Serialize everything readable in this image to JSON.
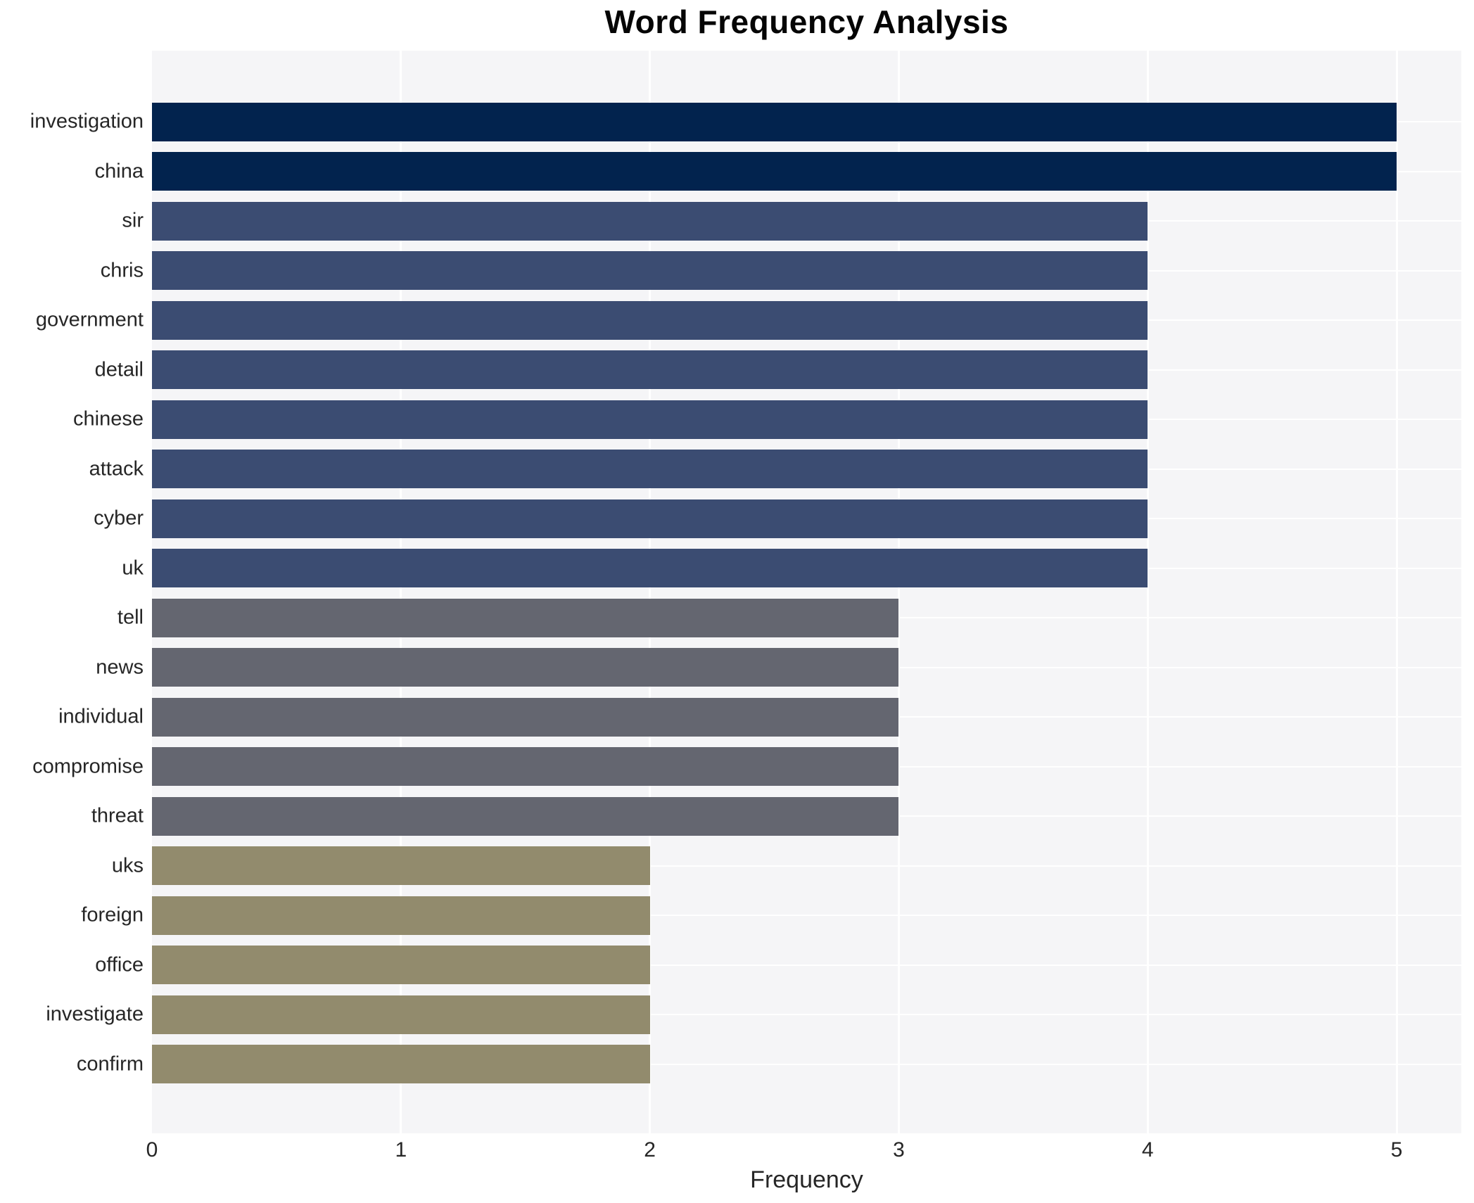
{
  "chart_data": {
    "type": "bar",
    "orientation": "horizontal",
    "title": "Word Frequency Analysis",
    "xlabel": "Frequency",
    "ylabel": "",
    "categories": [
      "investigation",
      "china",
      "sir",
      "chris",
      "government",
      "detail",
      "chinese",
      "attack",
      "cyber",
      "uk",
      "tell",
      "news",
      "individual",
      "compromise",
      "threat",
      "uks",
      "foreign",
      "office",
      "investigate",
      "confirm"
    ],
    "values": [
      5,
      5,
      4,
      4,
      4,
      4,
      4,
      4,
      4,
      4,
      3,
      3,
      3,
      3,
      3,
      2,
      2,
      2,
      2,
      2
    ],
    "x_ticks": [
      0,
      1,
      2,
      3,
      4,
      5
    ],
    "xlim": [
      0,
      5.26
    ],
    "grid": true,
    "legend": false,
    "colors_by_value": {
      "5": "#02234e",
      "4": "#3b4c72",
      "3": "#646670",
      "2": "#928b6d"
    },
    "plot_background": "#f5f5f7",
    "gridline_color": "#ffffff",
    "text_color": "#262626"
  }
}
